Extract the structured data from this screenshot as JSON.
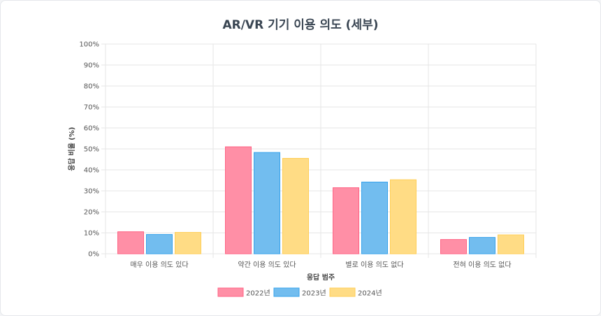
{
  "chart_data": {
    "type": "bar",
    "title": "AR/VR 기기 이용 의도 (세부)",
    "xlabel": "응답 범주",
    "ylabel": "응답 비율 (%)",
    "ylim": [
      0,
      100
    ],
    "yticks": [
      "0%",
      "10%",
      "20%",
      "30%",
      "40%",
      "50%",
      "60%",
      "70%",
      "80%",
      "90%",
      "100%"
    ],
    "categories": [
      "매우 이용 의도 있다",
      "약간 이용 의도 있다",
      "별로 이용 의도 없다",
      "전혀 이용 의도 없다"
    ],
    "series": [
      {
        "name": "2022년",
        "values": [
          10.5,
          51,
          31.5,
          6.8
        ],
        "color": "#ff8fa6",
        "border": "#ff6384"
      },
      {
        "name": "2023년",
        "values": [
          9.2,
          48.3,
          34.2,
          7.8
        ],
        "color": "#72bdef",
        "border": "#36a2eb"
      },
      {
        "name": "2024년",
        "values": [
          10.2,
          45.5,
          35.3,
          9
        ],
        "color": "#ffdc85",
        "border": "#ffce56"
      }
    ],
    "grid": true,
    "legend": "bottom"
  }
}
